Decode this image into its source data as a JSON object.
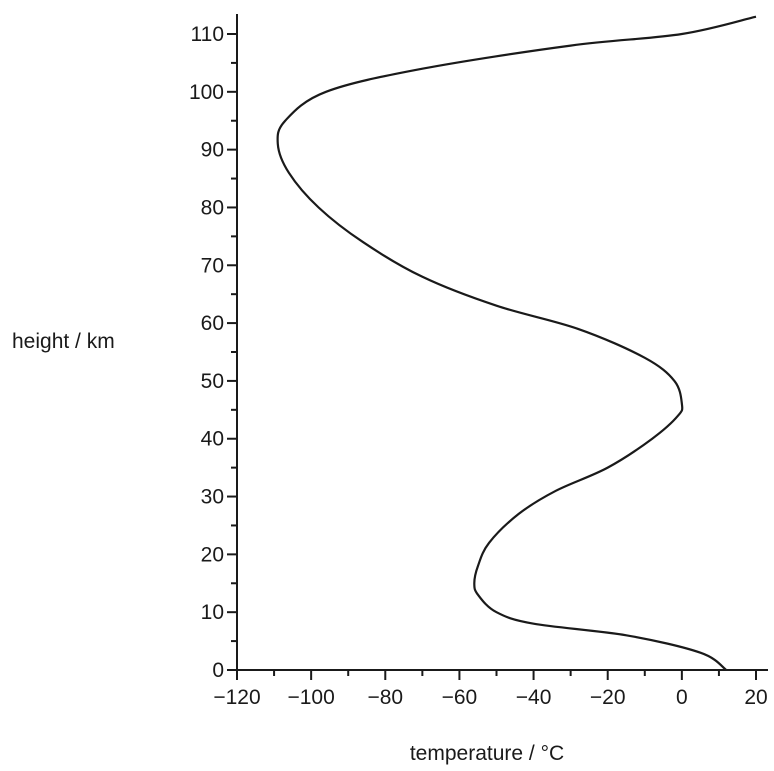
{
  "chart_data": {
    "type": "line",
    "title": "",
    "xlabel": "temperature / °C",
    "ylabel": "height / km",
    "xlim": [
      -120,
      20
    ],
    "ylim": [
      0,
      110
    ],
    "x_ticks": [
      -120,
      -100,
      -80,
      -60,
      -40,
      -20,
      0,
      20
    ],
    "x_tick_labels": [
      "−120",
      "−100",
      "−80",
      "−60",
      "−40",
      "−20",
      "0",
      "20"
    ],
    "y_ticks": [
      0,
      10,
      20,
      30,
      40,
      50,
      60,
      70,
      80,
      90,
      100,
      110
    ],
    "y_tick_labels": [
      "0",
      "10",
      "20",
      "30",
      "40",
      "50",
      "60",
      "70",
      "80",
      "90",
      "100",
      "110"
    ],
    "grid": false,
    "series": [
      {
        "color": "#1a1a1a",
        "points": [
          [
            12,
            0
          ],
          [
            5,
            3
          ],
          [
            -15,
            6
          ],
          [
            -40,
            8
          ],
          [
            -50,
            10
          ],
          [
            -55,
            13
          ],
          [
            -56,
            15
          ],
          [
            -55,
            18
          ],
          [
            -52,
            22
          ],
          [
            -44,
            27
          ],
          [
            -34,
            31
          ],
          [
            -20,
            35
          ],
          [
            -8,
            40
          ],
          [
            -1,
            44
          ],
          [
            0,
            46
          ],
          [
            -2,
            50
          ],
          [
            -10,
            54
          ],
          [
            -28,
            59
          ],
          [
            -50,
            63
          ],
          [
            -70,
            68
          ],
          [
            -86,
            74
          ],
          [
            -98,
            80
          ],
          [
            -106,
            86
          ],
          [
            -109,
            91
          ],
          [
            -107,
            95
          ],
          [
            -96,
            100
          ],
          [
            -70,
            104
          ],
          [
            -30,
            108
          ],
          [
            0,
            110
          ],
          [
            20,
            113
          ]
        ]
      }
    ]
  }
}
